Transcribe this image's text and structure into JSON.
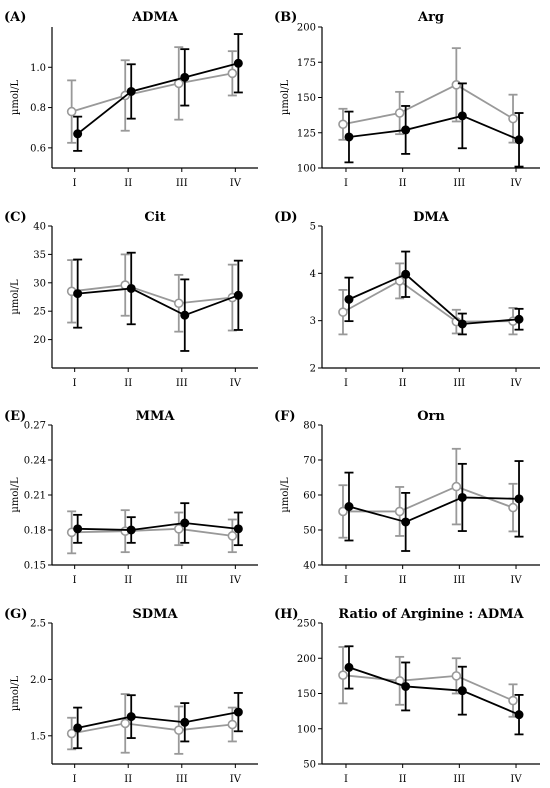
{
  "colors": {
    "series_open": "#999999",
    "series_filled": "#000000"
  },
  "chart_data": [
    {
      "type": "line",
      "panel_label": "(A)",
      "title": "ADMA",
      "ylabel": "µmol/L",
      "categories": [
        "I",
        "II",
        "III",
        "IV"
      ],
      "ylim": [
        0.5,
        1.2
      ],
      "yticks": [
        "0.6",
        "0.8",
        "1.0"
      ],
      "series": [
        {
          "marker": "open",
          "values": [
            0.78,
            0.86,
            0.92,
            0.97
          ],
          "err": [
            0.155,
            0.175,
            0.18,
            0.11
          ]
        },
        {
          "marker": "filled",
          "values": [
            0.67,
            0.88,
            0.95,
            1.02
          ],
          "err": [
            0.085,
            0.135,
            0.14,
            0.145
          ]
        }
      ]
    },
    {
      "type": "line",
      "panel_label": "(B)",
      "title": "Arg",
      "ylabel": "µmol/L",
      "categories": [
        "I",
        "II",
        "III",
        "IV"
      ],
      "ylim": [
        100,
        200
      ],
      "yticks": [
        "100",
        "125",
        "150",
        "175",
        "200"
      ],
      "series": [
        {
          "marker": "open",
          "values": [
            131,
            139,
            159,
            135
          ],
          "err": [
            11,
            15,
            26,
            17
          ]
        },
        {
          "marker": "filled",
          "values": [
            122,
            127,
            137,
            120
          ],
          "err": [
            18,
            17,
            23,
            19
          ]
        }
      ]
    },
    {
      "type": "line",
      "panel_label": "(C)",
      "title": "Cit",
      "ylabel": "µmol/L",
      "categories": [
        "I",
        "II",
        "III",
        "IV"
      ],
      "ylim": [
        15,
        40
      ],
      "yticks": [
        "20",
        "25",
        "30",
        "35",
        "40"
      ],
      "series": [
        {
          "marker": "open",
          "values": [
            28.5,
            29.6,
            26.4,
            27.4
          ],
          "err": [
            5.5,
            5.4,
            5.0,
            5.8
          ]
        },
        {
          "marker": "filled",
          "values": [
            28.1,
            29.0,
            24.3,
            27.8
          ],
          "err": [
            6.0,
            6.3,
            6.3,
            6.1
          ]
        }
      ]
    },
    {
      "type": "line",
      "panel_label": "(D)",
      "title": "DMA",
      "ylabel": "",
      "categories": [
        "I",
        "II",
        "III",
        "IV"
      ],
      "ylim": [
        2,
        5
      ],
      "yticks": [
        "2",
        "3",
        "4",
        "5"
      ],
      "series": [
        {
          "marker": "open",
          "values": [
            3.18,
            3.84,
            2.98,
            2.99
          ],
          "err": [
            0.47,
            0.37,
            0.25,
            0.28
          ]
        },
        {
          "marker": "filled",
          "values": [
            3.45,
            3.98,
            2.93,
            3.03
          ],
          "err": [
            0.46,
            0.48,
            0.22,
            0.22
          ]
        }
      ]
    },
    {
      "type": "line",
      "panel_label": "(E)",
      "title": "MMA",
      "ylabel": "µmol/L",
      "categories": [
        "I",
        "II",
        "III",
        "IV"
      ],
      "ylim": [
        0.15,
        0.27
      ],
      "yticks": [
        "0.15",
        "0.18",
        "0.21",
        "0.24",
        "0.27"
      ],
      "series": [
        {
          "marker": "open",
          "values": [
            0.178,
            0.179,
            0.181,
            0.175
          ],
          "err": [
            0.018,
            0.018,
            0.014,
            0.014
          ]
        },
        {
          "marker": "filled",
          "values": [
            0.181,
            0.18,
            0.186,
            0.181
          ],
          "err": [
            0.012,
            0.011,
            0.017,
            0.014
          ]
        }
      ]
    },
    {
      "type": "line",
      "panel_label": "(F)",
      "title": "Orn",
      "ylabel": "µmol/L",
      "categories": [
        "I",
        "II",
        "III",
        "IV"
      ],
      "ylim": [
        40,
        80
      ],
      "yticks": [
        "40",
        "50",
        "60",
        "70",
        "80"
      ],
      "series": [
        {
          "marker": "open",
          "values": [
            55.3,
            55.3,
            62.4,
            56.4
          ],
          "err": [
            7.5,
            7.0,
            10.8,
            6.8
          ]
        },
        {
          "marker": "filled",
          "values": [
            56.7,
            52.3,
            59.3,
            58.9
          ],
          "err": [
            9.7,
            8.3,
            9.6,
            10.8
          ]
        }
      ]
    },
    {
      "type": "line",
      "panel_label": "(G)",
      "title": "SDMA",
      "ylabel": "µmol/L",
      "categories": [
        "I",
        "II",
        "III",
        "IV"
      ],
      "ylim": [
        1.25,
        2.5
      ],
      "yticks": [
        "1.5",
        "2.0",
        "2.5"
      ],
      "series": [
        {
          "marker": "open",
          "values": [
            1.52,
            1.61,
            1.55,
            1.6
          ],
          "err": [
            0.14,
            0.26,
            0.21,
            0.15
          ]
        },
        {
          "marker": "filled",
          "values": [
            1.57,
            1.67,
            1.62,
            1.71
          ],
          "err": [
            0.18,
            0.19,
            0.17,
            0.17
          ]
        }
      ]
    },
    {
      "type": "line",
      "panel_label": "(H)",
      "title": "Ratio of Arginine : ADMA",
      "ylabel": "",
      "categories": [
        "I",
        "II",
        "III",
        "IV"
      ],
      "ylim": [
        50,
        250
      ],
      "yticks": [
        "50",
        "100",
        "150",
        "200",
        "250"
      ],
      "series": [
        {
          "marker": "open",
          "values": [
            176,
            168,
            175,
            140
          ],
          "err": [
            40,
            34,
            25,
            23
          ]
        },
        {
          "marker": "filled",
          "values": [
            187,
            160,
            154,
            120
          ],
          "err": [
            30,
            34,
            34,
            28
          ]
        }
      ]
    }
  ]
}
